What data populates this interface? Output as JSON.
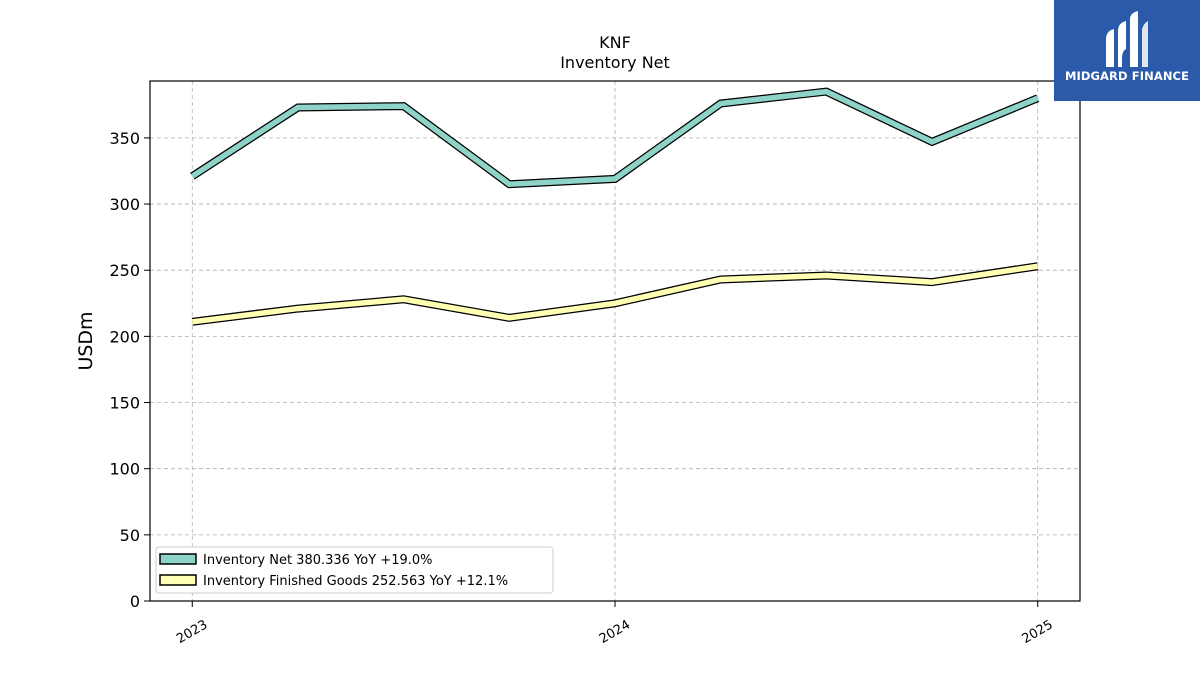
{
  "brand": {
    "name": "MIDGARD FINANCE",
    "color": "#2b5aab"
  },
  "chart_data": {
    "type": "line",
    "title": "KNF",
    "subtitle": "Inventory Net",
    "ylabel": "USDm",
    "xlabel": "",
    "ylim": [
      0,
      393
    ],
    "yticks": [
      0,
      50,
      100,
      150,
      200,
      250,
      300,
      350
    ],
    "xlim": [
      2022.9,
      2025.1
    ],
    "xticks": [
      {
        "value": 2023,
        "label": "2023"
      },
      {
        "value": 2024,
        "label": "2024"
      },
      {
        "value": 2025,
        "label": "2025"
      }
    ],
    "grid": true,
    "legend_position": "lower-left",
    "x": [
      2023.0,
      2023.25,
      2023.5,
      2023.75,
      2024.0,
      2024.25,
      2024.5,
      2024.75,
      2025.0
    ],
    "series": [
      {
        "name": "Inventory Net",
        "legend_label": "Inventory Net  380.336 YoY +19.0%",
        "color": "#8dd3c7",
        "values": [
          321,
          373,
          374,
          315,
          319,
          376,
          385,
          347,
          380
        ]
      },
      {
        "name": "Inventory Finished Goods",
        "legend_label": "Inventory Finished Goods  252.563 YoY +12.1%",
        "color": "#ffffb3",
        "values": [
          211,
          221,
          228,
          214,
          225,
          243,
          246,
          241,
          253
        ]
      }
    ]
  }
}
